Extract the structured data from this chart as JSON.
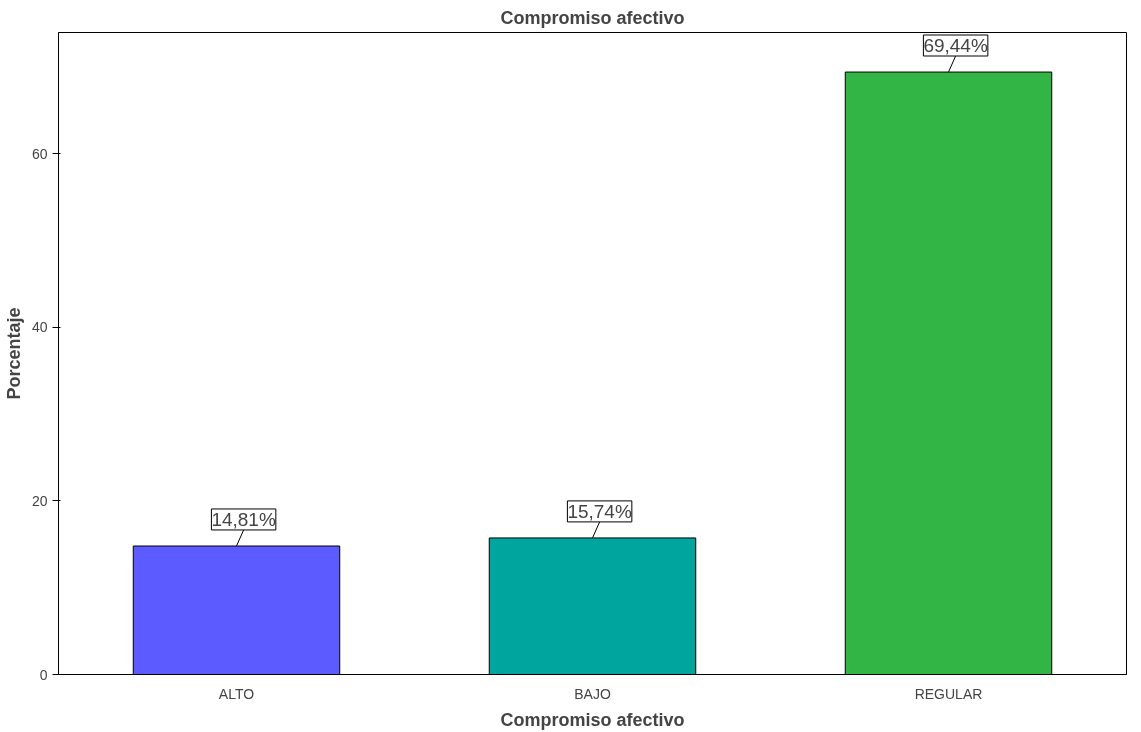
{
  "chart_data": {
    "type": "bar",
    "title": "Compromiso afectivo",
    "xlabel": "Compromiso afectivo",
    "ylabel": "Porcentaje",
    "categories": [
      "ALTO",
      "BAJO",
      "REGULAR"
    ],
    "values": [
      14.81,
      15.74,
      69.44
    ],
    "colors": [
      "#5b5bff",
      "#00a69e",
      "#33b545"
    ],
    "value_labels": [
      "14,81%",
      "15,74%",
      "69,44%"
    ],
    "ylim": [
      0,
      74
    ],
    "yticks": [
      0,
      20,
      40,
      60
    ],
    "grid": false
  }
}
